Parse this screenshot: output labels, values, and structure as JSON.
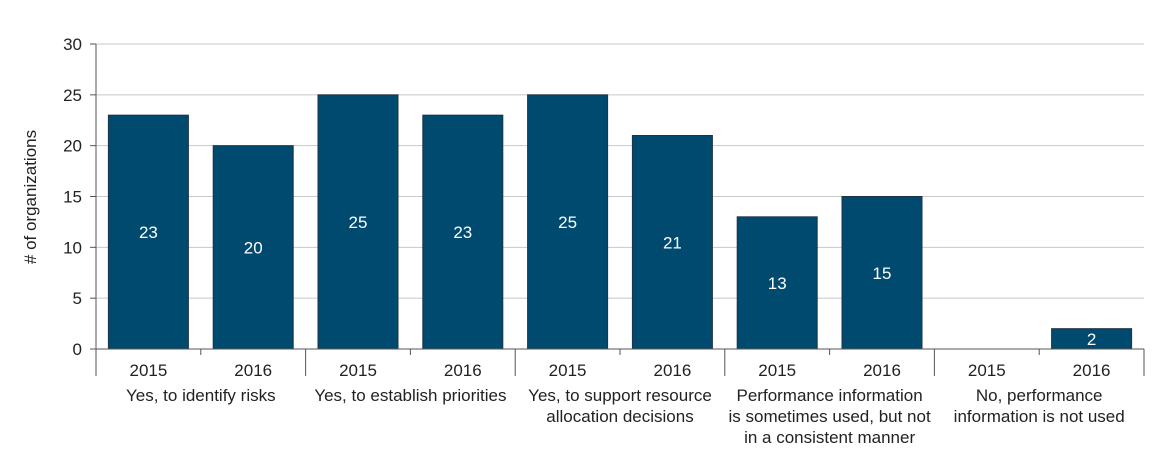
{
  "chart_data": {
    "type": "bar",
    "ylabel": "# of organizations",
    "ylim": [
      0,
      30
    ],
    "yticks": [
      0,
      5,
      10,
      15,
      20,
      25,
      30
    ],
    "grid": true,
    "bar_color": "#004a70",
    "groups": [
      {
        "label_lines": [
          "Yes, to identify risks"
        ],
        "bars": [
          {
            "year": "2015",
            "value": 23
          },
          {
            "year": "2016",
            "value": 20
          }
        ]
      },
      {
        "label_lines": [
          "Yes, to establish priorities"
        ],
        "bars": [
          {
            "year": "2015",
            "value": 25
          },
          {
            "year": "2016",
            "value": 23
          }
        ]
      },
      {
        "label_lines": [
          "Yes, to support resource",
          "allocation decisions"
        ],
        "bars": [
          {
            "year": "2015",
            "value": 25
          },
          {
            "year": "2016",
            "value": 21
          }
        ]
      },
      {
        "label_lines": [
          "Performance information",
          "is sometimes used, but not",
          "in a consistent manner"
        ],
        "bars": [
          {
            "year": "2015",
            "value": 13
          },
          {
            "year": "2016",
            "value": 15
          }
        ]
      },
      {
        "label_lines": [
          "No, performance",
          "information is not used"
        ],
        "bars": [
          {
            "year": "2015",
            "value": 0,
            "show_label": false
          },
          {
            "year": "2016",
            "value": 2
          }
        ]
      }
    ]
  }
}
